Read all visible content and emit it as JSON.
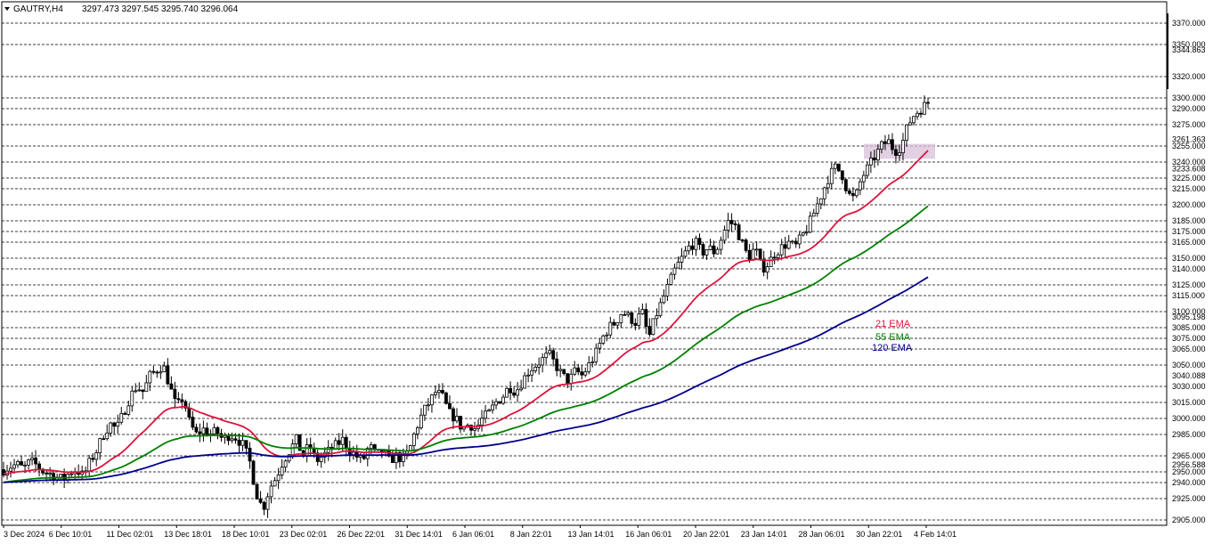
{
  "header": {
    "symbol": "GAUTRY,H4",
    "ohlc": "3297.473 3297.545 3295.740 3296.064"
  },
  "colors": {
    "ema21": "#dc143c",
    "ema55": "#008000",
    "ema120": "#00008b",
    "zone": "#d8bfd8",
    "candle": "#000000",
    "grid": "#000000"
  },
  "chart_data": {
    "type": "candlestick",
    "ylim": [
      2900,
      3390
    ],
    "levels": [
      3370,
      3350,
      3320,
      3300,
      3290,
      3275,
      3255,
      3240,
      3225,
      3215,
      3200,
      3185,
      3175,
      3165,
      3150,
      3140,
      3125,
      3115,
      3100,
      3085,
      3075,
      3065,
      3050,
      3030,
      3015,
      3000,
      2985,
      2965,
      2950,
      2940,
      2925,
      2905
    ],
    "y_labels": [
      "3370.000",
      "3350.000",
      "3344.863",
      "3320.000",
      "3300.000",
      "3290.000",
      "3275.000",
      "3261.363",
      "3255.000",
      "3240.000",
      "3233.608",
      "3225.000",
      "3215.000",
      "3200.000",
      "3185.000",
      "3175.000",
      "3165.000",
      "3150.000",
      "3140.000",
      "3125.000",
      "3115.000",
      "3100.000",
      "3095.198",
      "3085.000",
      "3075.000",
      "3065.000",
      "3050.000",
      "3040.088",
      "3030.000",
      "3015.000",
      "3000.000",
      "2985.000",
      "2965.000",
      "2956.588",
      "2950.000",
      "2940.000",
      "2925.000",
      "2905.000"
    ],
    "x_labels": [
      "3 Dec 2024",
      "6 Dec 10:01",
      "11 Dec 02:01",
      "13 Dec 18:01",
      "18 Dec 10:01",
      "23 Dec 02:01",
      "26 Dec 22:01",
      "31 Dec 14:01",
      "6 Jan 06:01",
      "8 Jan 22:01",
      "13 Jan 14:01",
      "16 Jan 06:01",
      "20 Jan 22:01",
      "23 Jan 14:01",
      "28 Jan 06:01",
      "30 Jan 22:01",
      "4 Feb 14:01"
    ],
    "closes": [
      2952,
      2955,
      2957,
      2953,
      2960,
      2956,
      2950,
      2948,
      2945,
      2943,
      2950,
      2952,
      2946,
      2960,
      2970,
      2985,
      2995,
      2990,
      3005,
      3020,
      3030,
      3025,
      3040,
      3045,
      3050,
      3030,
      3010,
      3020,
      2995,
      2985,
      2990,
      2985,
      2988,
      2980,
      2985,
      2982,
      2975,
      2960,
      2930,
      2915,
      2935,
      2945,
      2960,
      2970,
      2980,
      2965,
      2975,
      2960,
      2965,
      2970,
      2975,
      2980,
      2970,
      2965,
      2960,
      2975,
      2965,
      2970,
      2960,
      2965,
      2962,
      2970,
      2990,
      3005,
      3015,
      3025,
      3020,
      3005,
      3000,
      2990,
      2995,
      2990,
      3000,
      3005,
      3015,
      3020,
      3030,
      3025,
      3035,
      3045,
      3050,
      3055,
      3060,
      3050,
      3040,
      3035,
      3045,
      3040,
      3050,
      3060,
      3075,
      3085,
      3090,
      3100,
      3095,
      3090,
      3100,
      3075,
      3095,
      3110,
      3125,
      3140,
      3150,
      3160,
      3165,
      3155,
      3160,
      3155,
      3170,
      3185,
      3180,
      3165,
      3150,
      3160,
      3140,
      3145,
      3155,
      3160,
      3165,
      3160,
      3170,
      3180,
      3195,
      3210,
      3225,
      3235,
      3230,
      3210,
      3205,
      3225,
      3235,
      3245,
      3255,
      3260,
      3250,
      3255,
      3275,
      3285,
      3290,
      3296
    ]
  },
  "ema_labels": [
    {
      "text": "21 EMA",
      "color": "#dc143c"
    },
    {
      "text": "55 EMA",
      "color": "#008000"
    },
    {
      "text": "120 EMA",
      "color": "#00008b"
    }
  ]
}
